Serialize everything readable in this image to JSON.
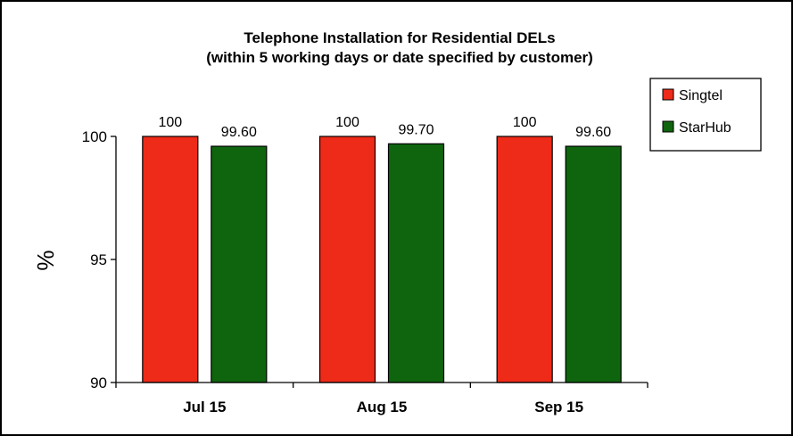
{
  "chart_data": {
    "type": "bar",
    "title": "Telephone Installation for Residential DELs",
    "subtitle": "(within 5 working days or date specified by customer)",
    "xlabel": "",
    "ylabel": "%",
    "ylim": [
      90,
      100
    ],
    "yticks": [
      90,
      95,
      100
    ],
    "categories": [
      "Jul 15",
      "Aug 15",
      "Sep 15"
    ],
    "series": [
      {
        "name": "Singtel",
        "color": "#ee2a18",
        "values": [
          100,
          100,
          100
        ],
        "labels": [
          "100",
          "100",
          "100"
        ]
      },
      {
        "name": "StarHub",
        "color": "#0e650e",
        "values": [
          99.6,
          99.7,
          99.6
        ],
        "labels": [
          "99.60",
          "99.70",
          "99.60"
        ]
      }
    ],
    "grid": false,
    "legend": "right",
    "data_labels": true
  }
}
